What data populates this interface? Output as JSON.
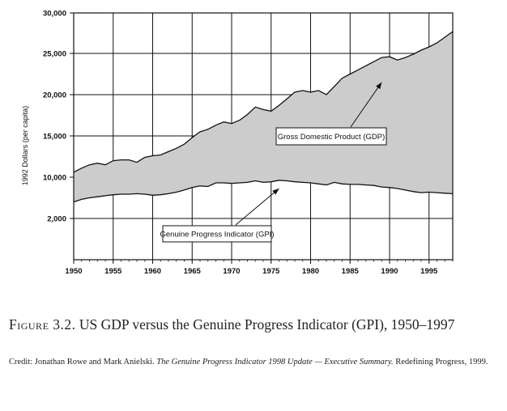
{
  "chart_data": {
    "type": "area",
    "title": "",
    "xlabel": "",
    "ylabel": "1992 Dollars (per capita)",
    "xlim": [
      1950,
      1998
    ],
    "x_ticks": [
      "1950",
      "1955",
      "1960",
      "1965",
      "1970",
      "1975",
      "1980",
      "1985",
      "1990",
      "1995"
    ],
    "y_ticks": [
      "2,000",
      "10,000",
      "15,000",
      "20,000",
      "25,000",
      "30,000"
    ],
    "grid": true,
    "series": [
      {
        "name": "Gross Domestic Product (GDP)",
        "x": [
          1950,
          1951,
          1952,
          1953,
          1954,
          1955,
          1956,
          1957,
          1958,
          1959,
          1960,
          1961,
          1962,
          1963,
          1964,
          1965,
          1966,
          1967,
          1968,
          1969,
          1970,
          1971,
          1972,
          1973,
          1974,
          1975,
          1976,
          1977,
          1978,
          1979,
          1980,
          1981,
          1982,
          1983,
          1984,
          1985,
          1986,
          1987,
          1988,
          1989,
          1990,
          1991,
          1992,
          1993,
          1994,
          1995,
          1996,
          1997,
          1998
        ],
        "y": [
          10600,
          11100,
          11500,
          11700,
          11500,
          12000,
          12100,
          12100,
          11800,
          12400,
          12600,
          12700,
          13100,
          13500,
          14000,
          14800,
          15500,
          15800,
          16300,
          16700,
          16500,
          16900,
          17600,
          18500,
          18200,
          18000,
          18700,
          19500,
          20300,
          20500,
          20300,
          20500,
          20000,
          21000,
          22000,
          22500,
          23000,
          23500,
          24000,
          24500,
          24600,
          24200,
          24500,
          24900,
          25400,
          25800,
          26300,
          27000,
          27700
        ]
      },
      {
        "name": "Genuine Progress Indicator (GPI)",
        "x": [
          1950,
          1951,
          1952,
          1953,
          1954,
          1955,
          1956,
          1957,
          1958,
          1959,
          1960,
          1961,
          1962,
          1963,
          1964,
          1965,
          1966,
          1967,
          1968,
          1969,
          1970,
          1971,
          1972,
          1973,
          1974,
          1975,
          1976,
          1977,
          1978,
          1979,
          1980,
          1981,
          1982,
          1983,
          1984,
          1985,
          1986,
          1987,
          1988,
          1989,
          1990,
          1991,
          1992,
          1993,
          1994,
          1995,
          1996,
          1997,
          1998
        ],
        "y": [
          5200,
          5700,
          6000,
          6200,
          6400,
          6600,
          6700,
          6700,
          6800,
          6700,
          6500,
          6600,
          6800,
          7100,
          7500,
          8000,
          8300,
          8200,
          8900,
          8900,
          8800,
          8900,
          9000,
          9300,
          9000,
          9100,
          9400,
          9300,
          9100,
          9000,
          8900,
          8700,
          8500,
          9000,
          8700,
          8600,
          8600,
          8500,
          8400,
          8100,
          8000,
          7800,
          7500,
          7200,
          7000,
          7100,
          7000,
          6900,
          6800
        ]
      }
    ],
    "annotations": [
      {
        "text": "Gross Domestic Product (GDP)",
        "target_x": 1989,
        "target_y": 21500
      },
      {
        "text": "Genuine Progress Indicator (GPI)",
        "target_x": 1976,
        "target_y": 7800
      }
    ]
  },
  "caption": {
    "figure_label": "Figure 3.2.",
    "text": "US GDP versus the Genuine Progress Indicator (GPI), 1950–1997"
  },
  "credit": {
    "prefix": "Credit: Jonathan Rowe and Mark Anielski. ",
    "title": "The Genuine Progress Indicator 1998 Update — Executive Summary.",
    "suffix": " Redefining Progress, 1999."
  }
}
